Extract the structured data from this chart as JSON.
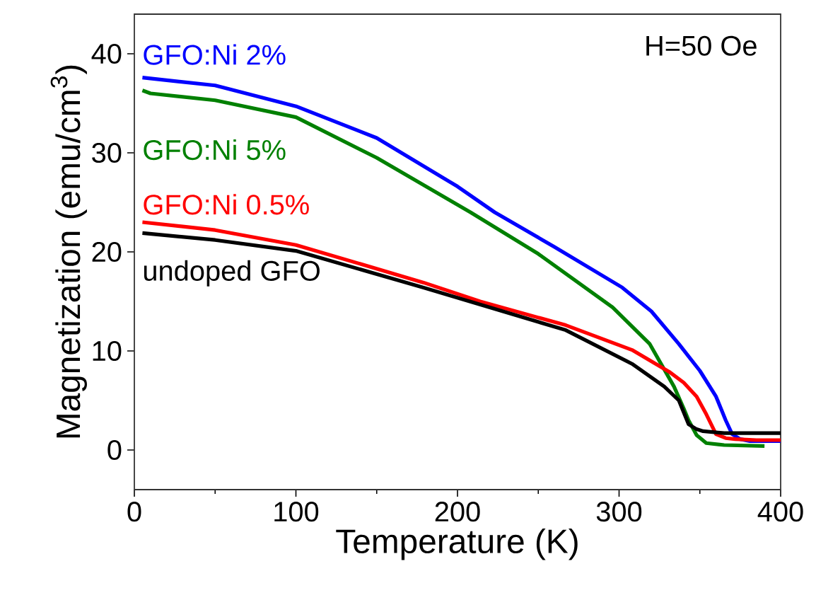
{
  "chart_data": {
    "type": "line",
    "xlabel": "Temperature (K)",
    "ylabel": "Magnetization (emu/cm$^{3}$)",
    "annotations": [
      "H=50 Oe"
    ],
    "xlim": [
      0,
      400
    ],
    "ylim": [
      -4,
      44
    ],
    "xticks": [
      0,
      100,
      200,
      300,
      400
    ],
    "yticks": [
      0,
      10,
      20,
      30,
      40
    ],
    "marker": "none",
    "line_style": "solid",
    "legend": false,
    "series": [
      {
        "name": "GFO:Ni 2%",
        "color": "#0000ff",
        "x": [
          5,
          50,
          100,
          150,
          200,
          223,
          260,
          302,
          320,
          337,
          350,
          360,
          366,
          370,
          375,
          381,
          390,
          400
        ],
        "values": [
          37.6,
          36.8,
          34.7,
          31.5,
          26.6,
          24.0,
          20.5,
          16.4,
          14.0,
          10.7,
          8.0,
          5.4,
          3.0,
          1.6,
          1.1,
          0.9,
          0.9,
          0.9
        ]
      },
      {
        "name": "GFO:Ni 5%",
        "color": "#008000",
        "x": [
          5,
          10,
          50,
          100,
          150,
          208,
          250,
          296,
          319,
          334,
          340,
          343,
          348,
          354,
          365,
          390
        ],
        "values": [
          36.3,
          36.0,
          35.3,
          33.6,
          29.5,
          24.0,
          19.8,
          14.4,
          10.7,
          6.4,
          4.2,
          3.0,
          1.5,
          0.7,
          0.5,
          0.4
        ]
      },
      {
        "name": "GFO:Ni 0.5%",
        "color": "#ff0000",
        "x": [
          5,
          50,
          100,
          179,
          214,
          267,
          308,
          331,
          340,
          348,
          354,
          360,
          366,
          372,
          385,
          400
        ],
        "values": [
          23.0,
          22.2,
          20.7,
          16.9,
          15.0,
          12.6,
          10.1,
          7.9,
          6.8,
          5.4,
          3.6,
          1.6,
          1.2,
          1.1,
          1.0,
          1.0
        ]
      },
      {
        "name": "undoped GFO",
        "color": "#000000",
        "x": [
          5,
          50,
          100,
          179,
          267,
          308,
          328,
          337,
          343,
          348,
          352,
          365,
          400
        ],
        "values": [
          21.9,
          21.2,
          20.1,
          16.4,
          12.1,
          8.7,
          6.4,
          5.0,
          2.6,
          2.1,
          1.9,
          1.7,
          1.7
        ]
      }
    ]
  }
}
